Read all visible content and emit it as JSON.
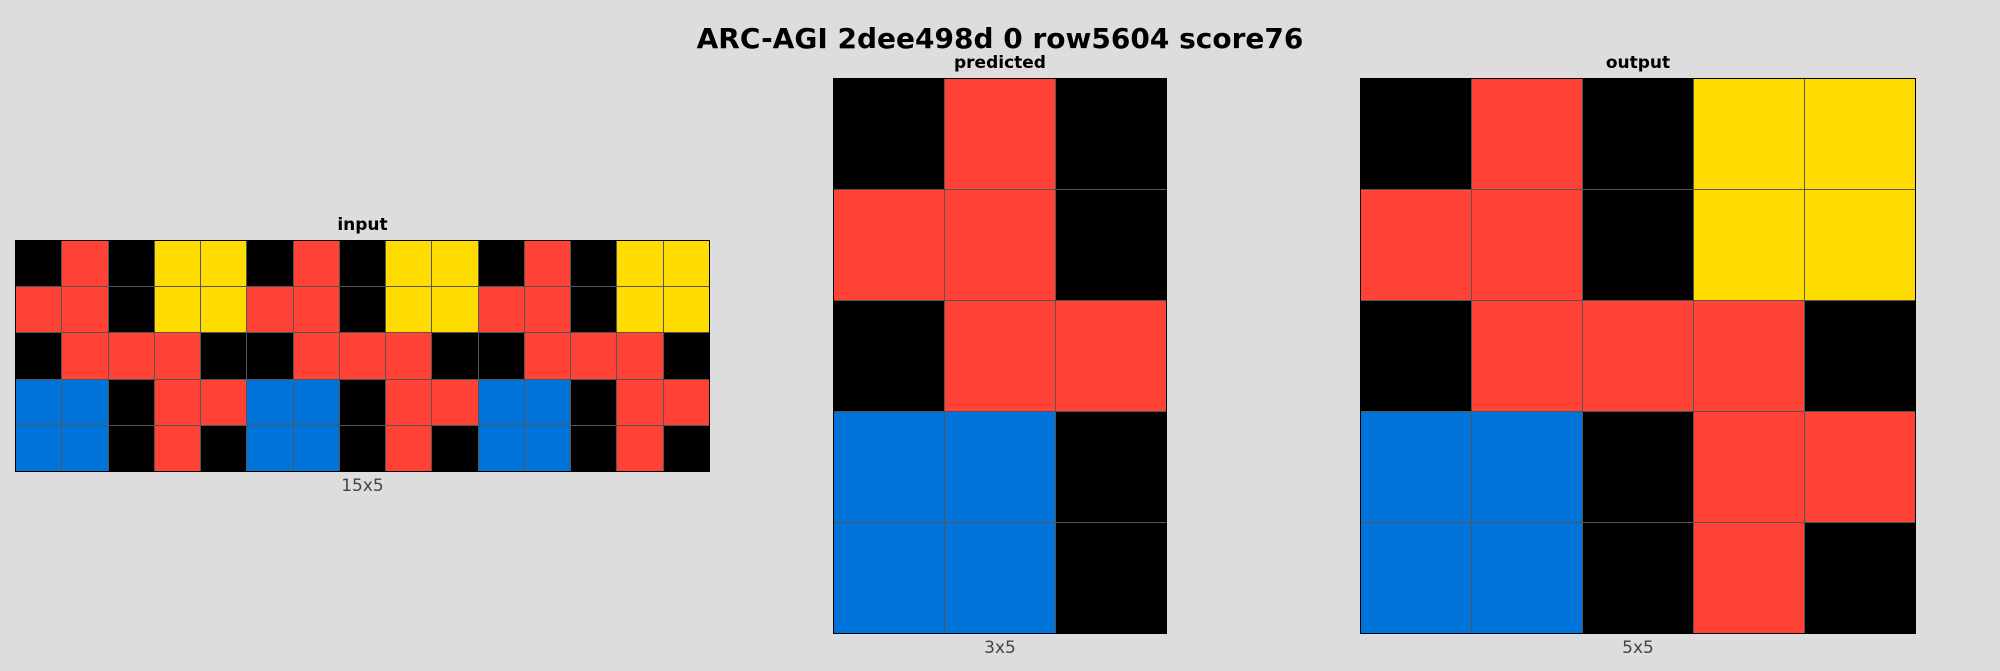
{
  "title": "ARC-AGI 2dee498d 0 row5604 score76",
  "palette": {
    "0": "#000000",
    "1": "#0074d9",
    "2": "#ff4136",
    "4": "#ffdc00"
  },
  "panels": {
    "input": {
      "label": "input",
      "size_label": "15x5",
      "rows": [
        [
          0,
          2,
          0,
          4,
          4,
          0,
          2,
          0,
          4,
          4,
          0,
          2,
          0,
          4,
          4
        ],
        [
          2,
          2,
          0,
          4,
          4,
          2,
          2,
          0,
          4,
          4,
          2,
          2,
          0,
          4,
          4
        ],
        [
          0,
          2,
          2,
          2,
          0,
          0,
          2,
          2,
          2,
          0,
          0,
          2,
          2,
          2,
          0
        ],
        [
          1,
          1,
          0,
          2,
          2,
          1,
          1,
          0,
          2,
          2,
          1,
          1,
          0,
          2,
          2
        ],
        [
          1,
          1,
          0,
          2,
          0,
          1,
          1,
          0,
          2,
          0,
          1,
          1,
          0,
          2,
          0
        ]
      ]
    },
    "predicted": {
      "label": "predicted",
      "size_label": "3x5",
      "rows": [
        [
          0,
          2,
          0
        ],
        [
          2,
          2,
          0
        ],
        [
          0,
          2,
          2
        ],
        [
          1,
          1,
          0
        ],
        [
          1,
          1,
          0
        ]
      ]
    },
    "output": {
      "label": "output",
      "size_label": "5x5",
      "rows": [
        [
          0,
          2,
          0,
          4,
          4
        ],
        [
          2,
          2,
          0,
          4,
          4
        ],
        [
          0,
          2,
          2,
          2,
          0
        ],
        [
          1,
          1,
          0,
          2,
          2
        ],
        [
          1,
          1,
          0,
          2,
          0
        ]
      ]
    }
  }
}
